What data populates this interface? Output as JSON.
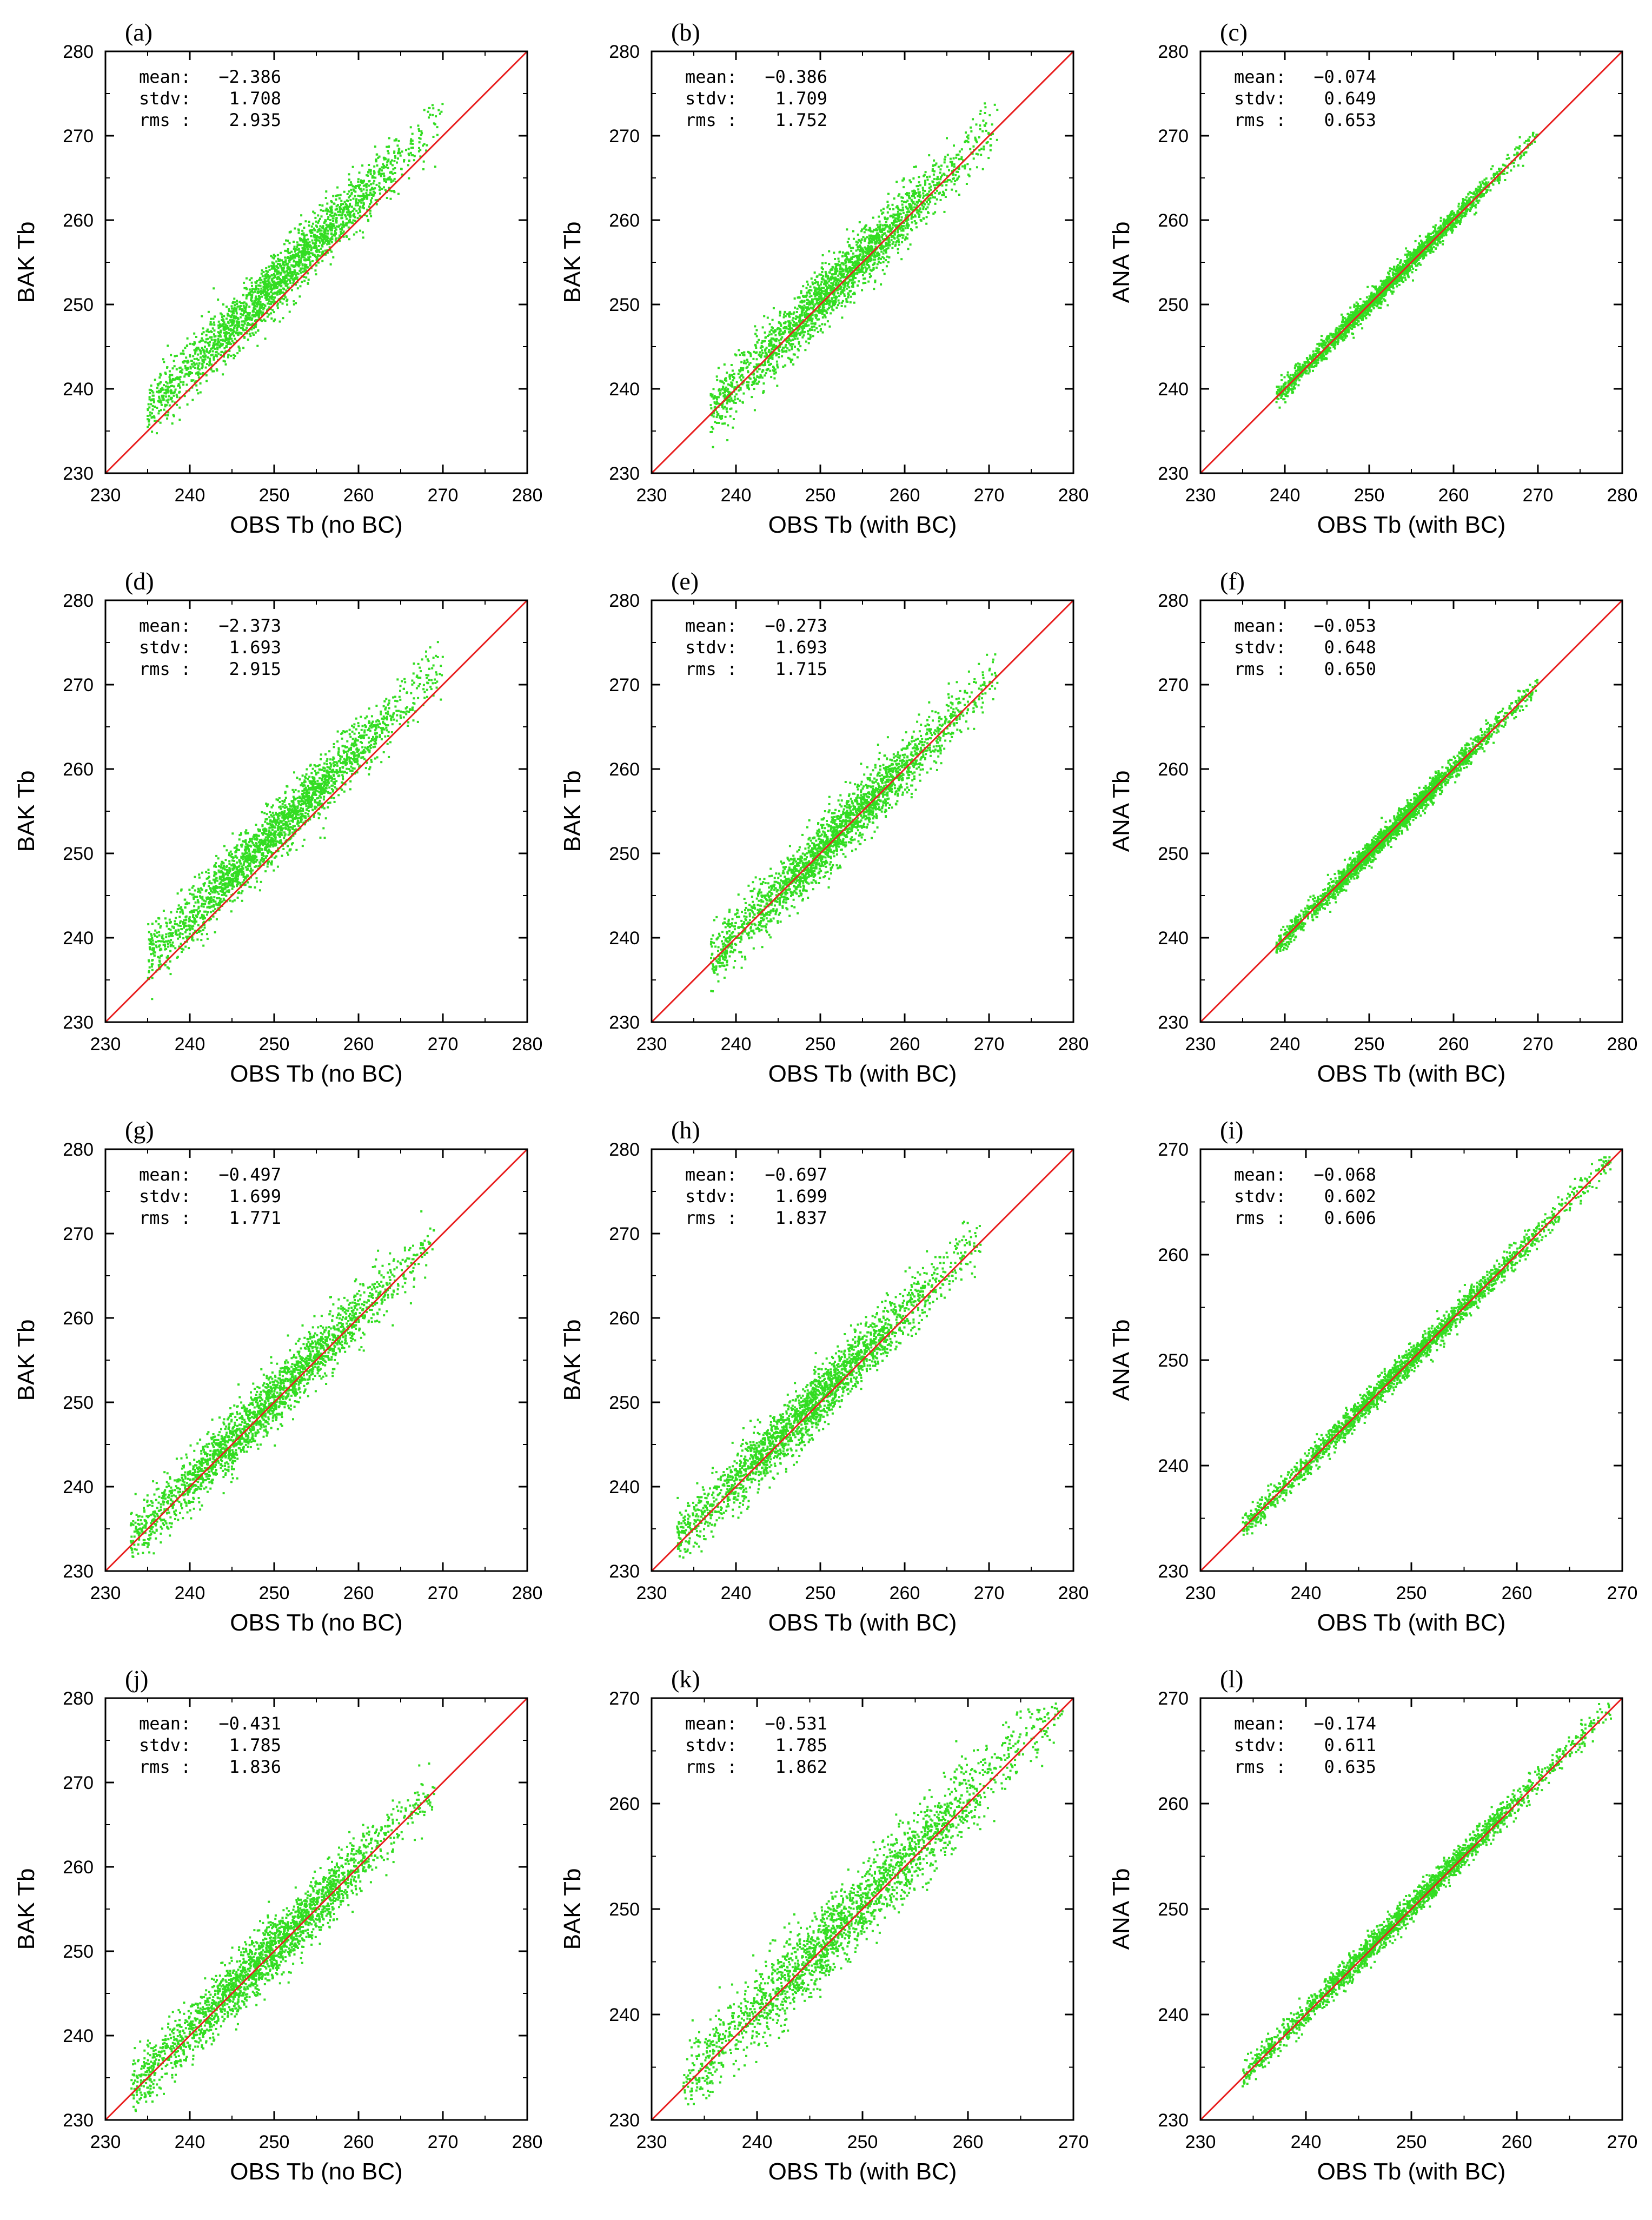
{
  "figure_title": "",
  "colors": {
    "points": "#33dd22",
    "diagonal": "#e82020",
    "axes": "#000000"
  },
  "chart_data": [
    {
      "panel": "(a)",
      "type": "scatter",
      "xlabel": "OBS Tb (no BC)",
      "ylabel": "BAK Tb",
      "xlim": [
        230,
        280
      ],
      "ylim": [
        230,
        280
      ],
      "xticks": [
        "230",
        "240",
        "250",
        "260",
        "270",
        "280"
      ],
      "yticks": [
        "230",
        "240",
        "250",
        "260",
        "270",
        "280"
      ],
      "stat_labels": [
        "mean:",
        "stdv:",
        "rms :"
      ],
      "stat_values": [
        "−2.386",
        "1.708",
        "2.935"
      ],
      "mean": -2.386,
      "stdv": 1.708,
      "rms": 2.935,
      "obs_range": [
        235,
        270
      ],
      "seed": 11,
      "reference_line": "y = x"
    },
    {
      "panel": "(b)",
      "type": "scatter",
      "xlabel": "OBS Tb (with BC)",
      "ylabel": "BAK Tb",
      "xlim": [
        230,
        280
      ],
      "ylim": [
        230,
        280
      ],
      "xticks": [
        "230",
        "240",
        "250",
        "260",
        "270",
        "280"
      ],
      "yticks": [
        "230",
        "240",
        "250",
        "260",
        "270",
        "280"
      ],
      "stat_labels": [
        "mean:",
        "stdv:",
        "rms :"
      ],
      "stat_values": [
        "−0.386",
        "1.709",
        "1.752"
      ],
      "mean": -0.386,
      "stdv": 1.709,
      "rms": 1.752,
      "obs_range": [
        237,
        271
      ],
      "seed": 23,
      "reference_line": "y = x"
    },
    {
      "panel": "(c)",
      "type": "scatter",
      "xlabel": "OBS Tb (with BC)",
      "ylabel": "ANA Tb",
      "xlim": [
        230,
        280
      ],
      "ylim": [
        230,
        280
      ],
      "xticks": [
        "230",
        "240",
        "250",
        "260",
        "270",
        "280"
      ],
      "yticks": [
        "230",
        "240",
        "250",
        "260",
        "270",
        "280"
      ],
      "stat_labels": [
        "mean:",
        "stdv:",
        "rms :"
      ],
      "stat_values": [
        "−0.074",
        "0.649",
        "0.653"
      ],
      "mean": -0.074,
      "stdv": 0.649,
      "rms": 0.653,
      "obs_range": [
        239,
        270
      ],
      "seed": 37,
      "reference_line": "y = x"
    },
    {
      "panel": "(d)",
      "type": "scatter",
      "xlabel": "OBS Tb (no BC)",
      "ylabel": "BAK Tb",
      "xlim": [
        230,
        280
      ],
      "ylim": [
        230,
        280
      ],
      "xticks": [
        "230",
        "240",
        "250",
        "260",
        "270",
        "280"
      ],
      "yticks": [
        "230",
        "240",
        "250",
        "260",
        "270",
        "280"
      ],
      "stat_labels": [
        "mean:",
        "stdv:",
        "rms :"
      ],
      "stat_values": [
        "−2.373",
        "1.693",
        "2.915"
      ],
      "mean": -2.373,
      "stdv": 1.693,
      "rms": 2.915,
      "obs_range": [
        235,
        270
      ],
      "seed": 41,
      "reference_line": "y = x"
    },
    {
      "panel": "(e)",
      "type": "scatter",
      "xlabel": "OBS Tb (with BC)",
      "ylabel": "BAK Tb",
      "xlim": [
        230,
        280
      ],
      "ylim": [
        230,
        280
      ],
      "xticks": [
        "230",
        "240",
        "250",
        "260",
        "270",
        "280"
      ],
      "yticks": [
        "230",
        "240",
        "250",
        "260",
        "270",
        "280"
      ],
      "stat_labels": [
        "mean:",
        "stdv:",
        "rms :"
      ],
      "stat_values": [
        "−0.273",
        "1.693",
        "1.715"
      ],
      "mean": -0.273,
      "stdv": 1.693,
      "rms": 1.715,
      "obs_range": [
        237,
        271
      ],
      "seed": 53,
      "reference_line": "y = x"
    },
    {
      "panel": "(f)",
      "type": "scatter",
      "xlabel": "OBS Tb (with BC)",
      "ylabel": "ANA Tb",
      "xlim": [
        230,
        280
      ],
      "ylim": [
        230,
        280
      ],
      "xticks": [
        "230",
        "240",
        "250",
        "260",
        "270",
        "280"
      ],
      "yticks": [
        "230",
        "240",
        "250",
        "260",
        "270",
        "280"
      ],
      "stat_labels": [
        "mean:",
        "stdv:",
        "rms :"
      ],
      "stat_values": [
        "−0.053",
        "0.648",
        "0.650"
      ],
      "mean": -0.053,
      "stdv": 0.648,
      "rms": 0.65,
      "obs_range": [
        239,
        270
      ],
      "seed": 67,
      "reference_line": "y = x"
    },
    {
      "panel": "(g)",
      "type": "scatter",
      "xlabel": "OBS Tb (no BC)",
      "ylabel": "BAK Tb",
      "xlim": [
        230,
        280
      ],
      "ylim": [
        230,
        280
      ],
      "xticks": [
        "230",
        "240",
        "250",
        "260",
        "270",
        "280"
      ],
      "yticks": [
        "230",
        "240",
        "250",
        "260",
        "270",
        "280"
      ],
      "stat_labels": [
        "mean:",
        "stdv:",
        "rms :"
      ],
      "stat_values": [
        "−0.497",
        "1.699",
        "1.771"
      ],
      "mean": -0.497,
      "stdv": 1.699,
      "rms": 1.771,
      "obs_range": [
        233,
        269
      ],
      "seed": 71,
      "reference_line": "y = x"
    },
    {
      "panel": "(h)",
      "type": "scatter",
      "xlabel": "OBS Tb (with BC)",
      "ylabel": "BAK Tb",
      "xlim": [
        230,
        280
      ],
      "ylim": [
        230,
        280
      ],
      "xticks": [
        "230",
        "240",
        "250",
        "260",
        "270",
        "280"
      ],
      "yticks": [
        "230",
        "240",
        "250",
        "260",
        "270",
        "280"
      ],
      "stat_labels": [
        "mean:",
        "stdv:",
        "rms :"
      ],
      "stat_values": [
        "−0.697",
        "1.699",
        "1.837"
      ],
      "mean": -0.697,
      "stdv": 1.699,
      "rms": 1.837,
      "obs_range": [
        233,
        269
      ],
      "seed": 83,
      "reference_line": "y = x"
    },
    {
      "panel": "(i)",
      "type": "scatter",
      "xlabel": "OBS Tb (with BC)",
      "ylabel": "ANA Tb",
      "xlim": [
        230,
        270
      ],
      "ylim": [
        230,
        270
      ],
      "xticks": [
        "230",
        "240",
        "250",
        "260",
        "270"
      ],
      "yticks": [
        "230",
        "240",
        "250",
        "260",
        "270"
      ],
      "stat_labels": [
        "mean:",
        "stdv:",
        "rms :"
      ],
      "stat_values": [
        "−0.068",
        "0.602",
        "0.606"
      ],
      "mean": -0.068,
      "stdv": 0.602,
      "rms": 0.606,
      "obs_range": [
        234,
        269
      ],
      "seed": 97,
      "reference_line": "y = x"
    },
    {
      "panel": "(j)",
      "type": "scatter",
      "xlabel": "OBS Tb (no BC)",
      "ylabel": "BAK Tb",
      "xlim": [
        230,
        280
      ],
      "ylim": [
        230,
        280
      ],
      "xticks": [
        "230",
        "240",
        "250",
        "260",
        "270",
        "280"
      ],
      "yticks": [
        "230",
        "240",
        "250",
        "260",
        "270",
        "280"
      ],
      "stat_labels": [
        "mean:",
        "stdv:",
        "rms :"
      ],
      "stat_values": [
        "−0.431",
        "1.785",
        "1.836"
      ],
      "mean": -0.431,
      "stdv": 1.785,
      "rms": 1.836,
      "obs_range": [
        233,
        269
      ],
      "seed": 101,
      "reference_line": "y = x"
    },
    {
      "panel": "(k)",
      "type": "scatter",
      "xlabel": "OBS Tb (with BC)",
      "ylabel": "BAK Tb",
      "xlim": [
        230,
        270
      ],
      "ylim": [
        230,
        270
      ],
      "xticks": [
        "230",
        "240",
        "250",
        "260",
        "270"
      ],
      "yticks": [
        "230",
        "240",
        "250",
        "260",
        "270"
      ],
      "stat_labels": [
        "mean:",
        "stdv:",
        "rms :"
      ],
      "stat_values": [
        "−0.531",
        "1.785",
        "1.862"
      ],
      "mean": -0.531,
      "stdv": 1.785,
      "rms": 1.862,
      "obs_range": [
        233,
        269
      ],
      "seed": 113,
      "reference_line": "y = x"
    },
    {
      "panel": "(l)",
      "type": "scatter",
      "xlabel": "OBS Tb (with BC)",
      "ylabel": "ANA Tb",
      "xlim": [
        230,
        270
      ],
      "ylim": [
        230,
        270
      ],
      "xticks": [
        "230",
        "240",
        "250",
        "260",
        "270"
      ],
      "yticks": [
        "230",
        "240",
        "250",
        "260",
        "270"
      ],
      "stat_labels": [
        "mean:",
        "stdv:",
        "rms :"
      ],
      "stat_values": [
        "−0.174",
        "0.611",
        "0.635"
      ],
      "mean": -0.174,
      "stdv": 0.611,
      "rms": 0.635,
      "obs_range": [
        234,
        269
      ],
      "seed": 127,
      "reference_line": "y = x"
    }
  ]
}
